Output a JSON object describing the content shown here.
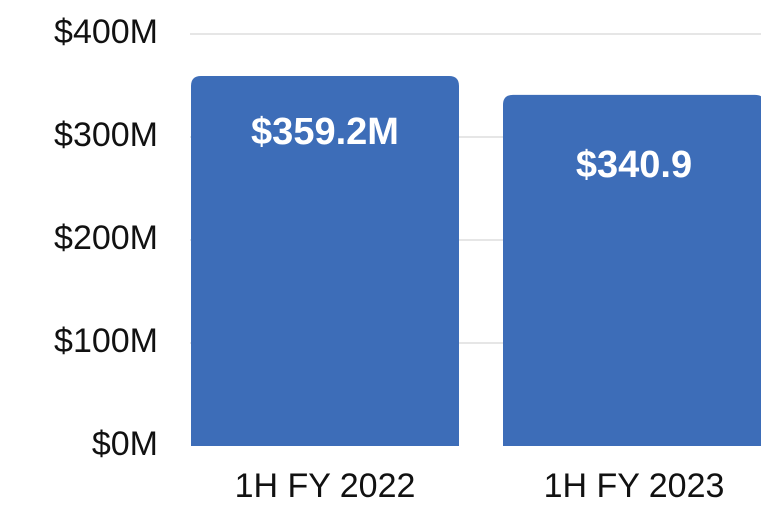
{
  "chart_data": {
    "type": "bar",
    "categories": [
      "1H FY 2022",
      "1H FY 2023"
    ],
    "values": [
      359.2,
      340.9
    ],
    "data_labels": [
      "$359.2M",
      "$340.9"
    ],
    "ylim": [
      0,
      400
    ],
    "yticks": [
      0,
      100,
      200,
      300,
      400
    ],
    "ytick_labels": [
      "$0M",
      "$100M",
      "$200M",
      "$300M",
      "$400M"
    ],
    "grid": true,
    "legend": "none",
    "colors": {
      "bar": "#3D6DB8",
      "grid": "#D6D6D6",
      "text": "#111111",
      "label": "#FFFFFF"
    }
  }
}
